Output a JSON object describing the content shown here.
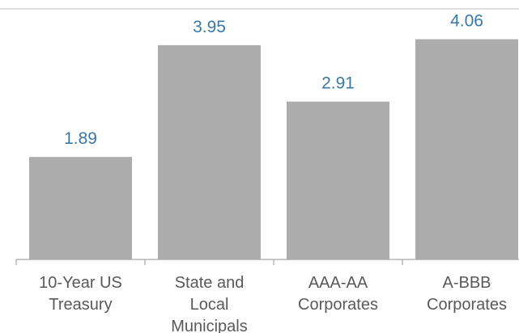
{
  "chart_data": {
    "type": "bar",
    "title": "",
    "xlabel": "",
    "ylabel": "",
    "categories": [
      [
        "10-Year US",
        "Treasury"
      ],
      [
        "State and",
        "Local",
        "Municipals"
      ],
      [
        "AAA-AA",
        "Corporates"
      ],
      [
        "A-BBB",
        "Corporates"
      ]
    ],
    "values": [
      1.89,
      3.95,
      2.91,
      4.06
    ],
    "value_labels": [
      "1.89",
      "3.95",
      "2.91",
      "4.06"
    ],
    "ylim": [
      0,
      4.5
    ],
    "grid": false,
    "legend": "none",
    "colors": {
      "bar": "#acacac",
      "value_label": "#3a79a5",
      "category_label": "#595959",
      "axis": "#a6a6a6",
      "top_rule": "#bfbfbf"
    }
  }
}
